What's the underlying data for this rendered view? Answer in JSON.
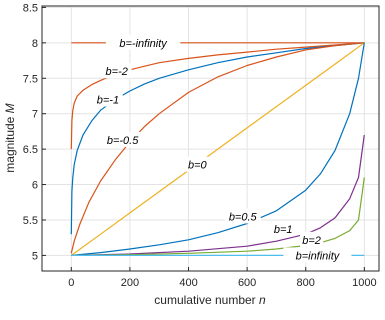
{
  "chart_data": {
    "type": "line",
    "title": "",
    "xlabel": "cumulative number",
    "xlabel_var": "n",
    "ylabel": "magnitude",
    "ylabel_var": "M",
    "xlim": [
      -100,
      1050
    ],
    "ylim": [
      4.78,
      8.52
    ],
    "xticks": [
      0,
      200,
      400,
      600,
      800,
      1000
    ],
    "yticks": [
      5,
      5.5,
      6,
      6.5,
      7,
      7.5,
      8,
      8.5
    ],
    "xtick_labels": [
      "0",
      "200",
      "400",
      "600",
      "800",
      "1000"
    ],
    "ytick_labels": [
      "5",
      "5.5",
      "6",
      "6.5",
      "7",
      "7.5",
      "8",
      "8.5"
    ],
    "grid": true,
    "series": [
      {
        "color": "#d95319",
        "x": [
          0,
          1000
        ],
        "y": [
          8,
          8
        ]
      },
      {
        "color": "#d95319",
        "x": [
          0,
          2,
          5,
          10,
          20,
          40,
          70,
          100,
          150,
          200,
          250,
          300,
          400,
          500,
          600,
          700,
          800,
          900,
          1000
        ],
        "y": [
          6.5,
          6.9,
          7.05,
          7.15,
          7.25,
          7.33,
          7.41,
          7.47,
          7.56,
          7.62,
          7.67,
          7.72,
          7.78,
          7.83,
          7.87,
          7.91,
          7.94,
          7.97,
          8.0
        ]
      },
      {
        "color": "#0072bd",
        "x": [
          0,
          2,
          5,
          10,
          20,
          40,
          70,
          100,
          150,
          200,
          250,
          300,
          400,
          500,
          600,
          700,
          800,
          900,
          1000
        ],
        "y": [
          5.3,
          5.9,
          6.1,
          6.28,
          6.48,
          6.7,
          6.9,
          7.05,
          7.2,
          7.32,
          7.42,
          7.5,
          7.62,
          7.72,
          7.8,
          7.86,
          7.92,
          7.96,
          8.0
        ]
      },
      {
        "color": "#d95319",
        "x": [
          0,
          10,
          30,
          60,
          100,
          150,
          200,
          250,
          300,
          400,
          500,
          600,
          700,
          800,
          900,
          1000
        ],
        "y": [
          5.03,
          5.2,
          5.45,
          5.75,
          6.05,
          6.35,
          6.6,
          6.82,
          7.0,
          7.3,
          7.52,
          7.68,
          7.8,
          7.9,
          7.96,
          8.0
        ]
      },
      {
        "color": "#edb120",
        "x": [
          0,
          100,
          200,
          300,
          400,
          500,
          600,
          700,
          800,
          900,
          1000
        ],
        "y": [
          5.0,
          5.3,
          5.6,
          5.9,
          6.2,
          6.5,
          6.8,
          7.1,
          7.4,
          7.7,
          8.0
        ]
      },
      {
        "color": "#0072bd",
        "x": [
          0,
          100,
          200,
          300,
          400,
          500,
          600,
          700,
          800,
          850,
          900,
          950,
          980,
          1000
        ],
        "y": [
          5.0,
          5.04,
          5.09,
          5.15,
          5.22,
          5.32,
          5.45,
          5.63,
          5.92,
          6.15,
          6.48,
          7.0,
          7.5,
          8.0
        ]
      },
      {
        "color": "#7e2f8e",
        "x": [
          0,
          200,
          400,
          600,
          700,
          800,
          850,
          900,
          950,
          980,
          1000
        ],
        "y": [
          5.0,
          5.02,
          5.06,
          5.13,
          5.2,
          5.3,
          5.39,
          5.53,
          5.8,
          6.1,
          6.7
        ]
      },
      {
        "color": "#77ac30",
        "x": [
          0,
          200,
          400,
          600,
          700,
          800,
          850,
          900,
          950,
          980,
          1000
        ],
        "y": [
          5.0,
          5.01,
          5.03,
          5.06,
          5.09,
          5.14,
          5.18,
          5.24,
          5.35,
          5.5,
          6.1
        ]
      },
      {
        "color": "#4dbeee",
        "x": [
          0,
          1000
        ],
        "y": [
          5.0,
          5.0
        ]
      }
    ],
    "annotations": [
      {
        "text": "b=-infinity",
        "x": 245,
        "y": 8.0
      },
      {
        "text": "b=-2",
        "x": 155,
        "y": 7.6
      },
      {
        "text": "b=-1",
        "x": 125,
        "y": 7.2
      },
      {
        "text": "b=-0.5",
        "x": 175,
        "y": 6.63
      },
      {
        "text": "b=0",
        "x": 430,
        "y": 6.28
      },
      {
        "text": "b=0.5",
        "x": 585,
        "y": 5.55
      },
      {
        "text": "b=1",
        "x": 723,
        "y": 5.37
      },
      {
        "text": "b=2",
        "x": 820,
        "y": 5.22
      },
      {
        "text": "b=infinity",
        "x": 840,
        "y": 5.0
      }
    ]
  }
}
